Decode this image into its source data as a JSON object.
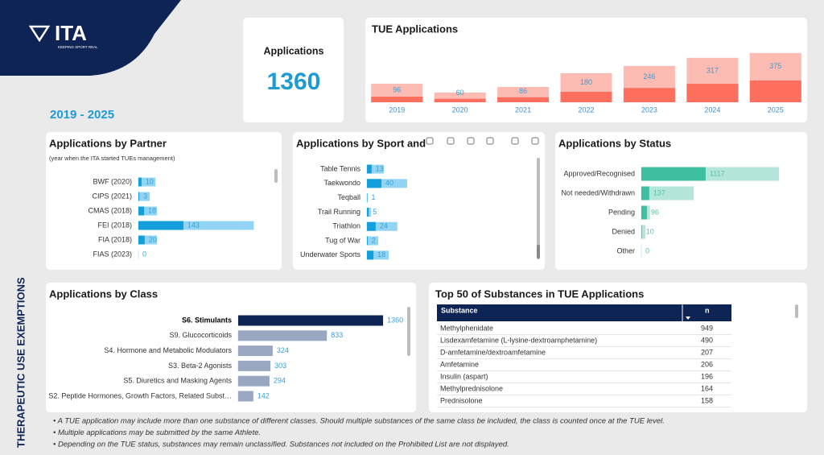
{
  "logo": {
    "name": "ITA",
    "tagline": "KEEPING SPORT REAL"
  },
  "side_title": "THERAPEUTIC USE EXEMPTIONS",
  "period": "2019 - 2025",
  "kpi": {
    "label": "Applications",
    "value": 1360
  },
  "chart_data": [
    {
      "type": "column",
      "title": "TUE Applications",
      "categories": [
        "2019",
        "2020",
        "2021",
        "2022",
        "2023",
        "2024",
        "2025"
      ],
      "series": [
        {
          "color": "#ff6f5e",
          "values": [
            96,
            60,
            86,
            180,
            246,
            317,
            375
          ]
        },
        {
          "color": "#fcbcb3",
          "values": [
            320,
            167,
            264,
            500,
            625,
            764,
            847
          ]
        }
      ],
      "ylim": [
        0,
        900
      ]
    },
    {
      "type": "hbar",
      "title": "Applications by Partner",
      "subtitle": "(year when the ITA started TUEs management)",
      "categories": [
        "BWF (2020)",
        "CIPS (2021)",
        "CMAS (2018)",
        "FEI (2018)",
        "FIA (2018)",
        "FIAS (2023)"
      ],
      "series": [
        {
          "color": "#129fdb",
          "values": [
            10,
            3,
            18,
            143,
            20,
            0
          ]
        },
        {
          "color": "#91d4f4",
          "values": [
            54,
            36,
            59,
            367,
            59,
            0
          ]
        }
      ],
      "xlim": [
        0,
        440
      ]
    },
    {
      "type": "hbar",
      "title": "Applications by Sport and",
      "categories": [
        "Table Tennis",
        "Taekwondo",
        "Teqball",
        "Trail Running",
        "Triathlon",
        "Tug of War",
        "Underwater Sports"
      ],
      "series": [
        {
          "color": "#129fdb",
          "values": [
            13,
            40,
            1,
            5,
            24,
            2,
            18
          ]
        },
        {
          "color": "#91d4f4",
          "values": [
            47,
            111,
            2,
            11,
            84,
            31,
            60
          ]
        }
      ],
      "xlim": [
        0,
        400
      ]
    },
    {
      "type": "hbar",
      "title": "Applications by Status",
      "categories": [
        "Approved/Recognised",
        "Not needed/Withdrawn",
        "Pending",
        "Denied",
        "Other"
      ],
      "series": [
        {
          "color": "#3dbfa0",
          "values": [
            1117,
            137,
            96,
            10,
            0
          ]
        },
        {
          "color": "#b5e6da",
          "values": [
            2390,
            910,
            150,
            70,
            0
          ]
        }
      ],
      "xlim": [
        0,
        2600
      ]
    },
    {
      "type": "hbar",
      "title": "Applications by Class",
      "categories": [
        "S6. Stimulants",
        "S9. Glucocorticoids",
        "S4. Hormone and Metabolic Modulators",
        "S3. Beta-2 Agonists",
        "S5. Diuretics and Masking Agents",
        "S2. Peptide Hormones, Growth Factors, Related Subst…"
      ],
      "values": [
        1360,
        833,
        324,
        303,
        294,
        142
      ],
      "colors": [
        "#0d2455",
        "#9aa7c0",
        "#9aa7c0",
        "#9aa7c0",
        "#9aa7c0",
        "#9aa7c0"
      ],
      "xlim": [
        0,
        1500
      ]
    }
  ],
  "table": {
    "title": "Top 50 of Substances in TUE Applications",
    "columns": [
      "Substance",
      "n"
    ],
    "rows": [
      [
        "Methylphenidate",
        949
      ],
      [
        "Lisdexamfetamine (L-lysine-dextroamphetamine)",
        490
      ],
      [
        "D-amfetamine/dextroamfetamine",
        207
      ],
      [
        "Amfetamine",
        206
      ],
      [
        "Insulin (aspart)",
        196
      ],
      [
        "Methylprednisolone",
        164
      ],
      [
        "Prednisolone",
        158
      ]
    ]
  },
  "notes": [
    "• A TUE application may include more than one substance of different classes. Should multiple substances of the same class be included, the class is counted once at the TUE level.",
    "• Multiple applications may be submitted by the same Athlete.",
    "• Depending on the TUE status, substances may remain unclassified. Substances not included on the Prohibited List are not displayed."
  ]
}
